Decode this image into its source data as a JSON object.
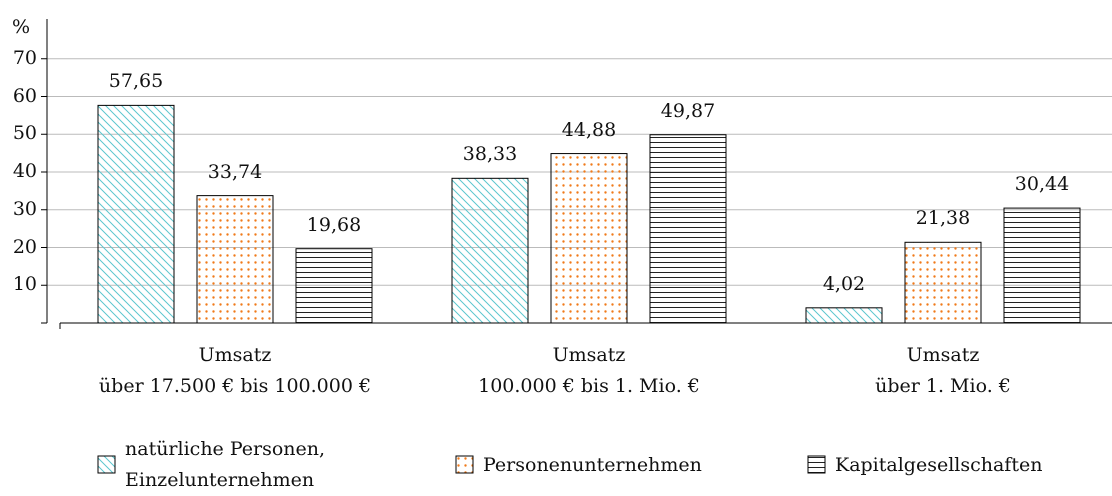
{
  "chart_data": {
    "type": "bar",
    "ylabel": "%",
    "categories": [
      "Umsatz\nüber 17.500 € bis 100.000 €",
      "Umsatz\n100.000 € bis 1. Mio. €",
      "Umsatz\nüber 1. Mio. €"
    ],
    "series": [
      {
        "name": "natürliche Personen,\nEinzelunternehmen",
        "color": "#5cc6cf",
        "pattern": "diagonal",
        "values": [
          57.65,
          38.33,
          4.02
        ],
        "value_labels": [
          "57,65",
          "38,33",
          "4,02"
        ]
      },
      {
        "name": "Personenunternehmen",
        "color": "#f07a1a",
        "pattern": "dots",
        "values": [
          33.74,
          44.88,
          21.38
        ],
        "value_labels": [
          "33,74",
          "44,88",
          "21,38"
        ]
      },
      {
        "name": "Kapitalgesellschaften",
        "color": "#222222",
        "pattern": "horizontal",
        "values": [
          19.68,
          49.87,
          30.44
        ],
        "value_labels": [
          "19,68",
          "49,87",
          "30,44"
        ]
      }
    ],
    "ylim": [
      0,
      80
    ],
    "yticks": [
      10,
      20,
      30,
      40,
      50,
      60,
      70
    ],
    "grid": true,
    "legend": "bottom"
  }
}
